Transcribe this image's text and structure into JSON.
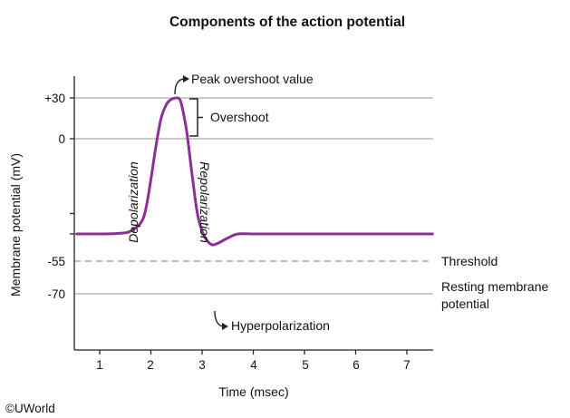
{
  "chart_data": {
    "type": "line",
    "title": "Components of the action potential",
    "xlabel": "Time (msec)",
    "ylabel": "Membrane potential (mV)",
    "x_ticks": [
      "1",
      "2",
      "3",
      "4",
      "5",
      "6",
      "7"
    ],
    "y_ticks": [
      "+30",
      "0",
      "-55",
      "-70"
    ],
    "y_tick_values": [
      30,
      0,
      -55,
      -70
    ],
    "xlim": [
      0.55,
      7.5
    ],
    "ylim": [
      -100,
      46
    ],
    "series": [
      {
        "color": "#8b2f96",
        "x": [
          0.55,
          1.0,
          1.4,
          1.6,
          1.8,
          1.9,
          2.0,
          2.1,
          2.2,
          2.3,
          2.4,
          2.5,
          2.55,
          2.6,
          2.7,
          2.8,
          2.9,
          3.0,
          3.1,
          3.2,
          3.3,
          3.5,
          3.7,
          4.0,
          5.0,
          6.0,
          7.5
        ],
        "y": [
          -70,
          -70,
          -69.5,
          -68,
          -62,
          -52,
          -30,
          -5,
          15,
          25,
          29,
          30,
          29.5,
          25,
          5,
          -25,
          -53,
          -68,
          -75,
          -78,
          -77,
          -73,
          -70,
          -70,
          -70,
          -70,
          -70
        ]
      }
    ],
    "reference_lines": [
      {
        "y": 30,
        "style": "solid"
      },
      {
        "y": 0,
        "style": "solid"
      },
      {
        "y": -55,
        "style": "dashed",
        "label": "Threshold"
      },
      {
        "y": -70,
        "style": "solid",
        "label_lines": [
          "Resting membrane",
          "potential"
        ]
      }
    ],
    "annotations": {
      "peak": "Peak overshoot value",
      "overshoot": "Overshoot",
      "depolarization": "Depolarization",
      "repolarization": "Repolarization",
      "hyperpolarization": "Hyperpolarization"
    },
    "grid": false,
    "line_color": "#8b2f96",
    "reference_line_color": "#aaaaaa"
  },
  "copyright": "©UWorld"
}
